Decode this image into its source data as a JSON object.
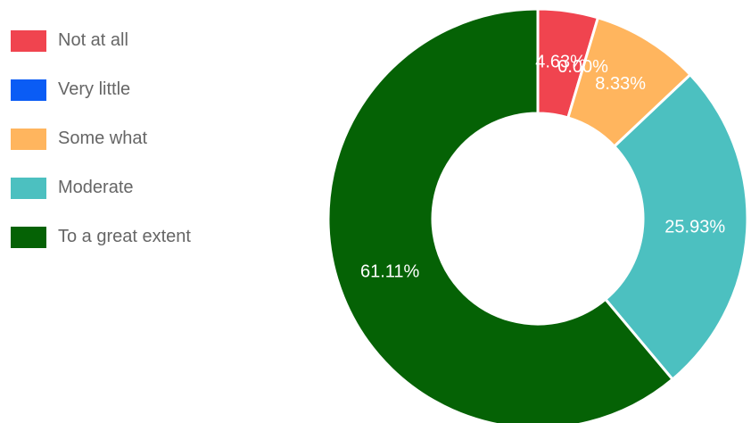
{
  "chart_data": {
    "type": "pie",
    "donut": true,
    "legend_position": "left",
    "categories": [
      "Not at all",
      "Very little",
      "Some what",
      "Moderate",
      "To a great extent"
    ],
    "values": [
      4.63,
      0.0,
      8.33,
      25.93,
      61.11
    ],
    "labels": [
      "4.63%",
      "0.00%",
      "8.33%",
      "25.93%",
      "61.11%"
    ],
    "colors": [
      "#f0444f",
      "#0a5cf5",
      "#ffb55e",
      "#4cc0c0",
      "#056205"
    ]
  }
}
